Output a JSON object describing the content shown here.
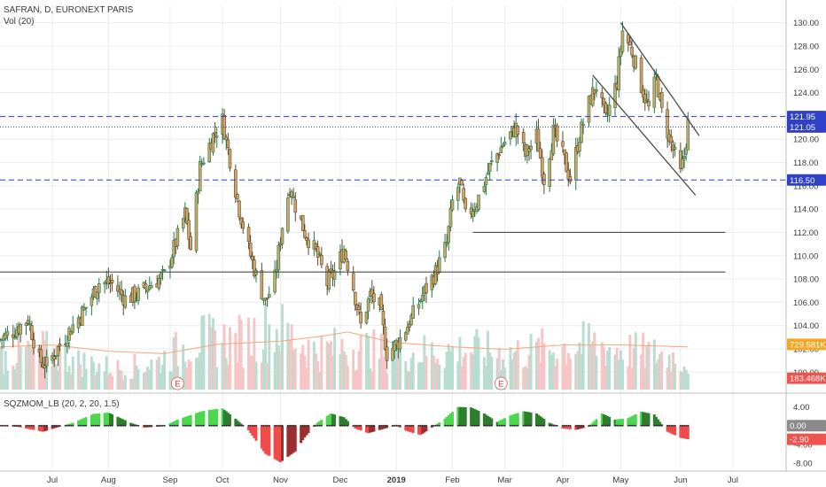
{
  "chart_data": {
    "type": "candlestick",
    "symbol_line": "SAFRAN, D, EURONEXT PARIS",
    "volume_label": "Vol (20)",
    "indicator_label": "SQZMOM_LB (20, 2, 20, 1.5)",
    "price_axis": {
      "range": [
        98.5,
        131.5
      ],
      "ticks": [
        100,
        102,
        104,
        106,
        108,
        110,
        112,
        114,
        116,
        118,
        120,
        122,
        124,
        126,
        128,
        130
      ],
      "tick_labels": [
        "100.00",
        "102.00",
        "104.00",
        "106.00",
        "108.00",
        "110.00",
        "112.00",
        "114.00",
        "116.00",
        "118.00",
        "120.00",
        "122.00",
        "124.00",
        "126.00",
        "128.00",
        "130.00"
      ]
    },
    "indicator_axis": {
      "range": [
        -9.5,
        6
      ],
      "ticks": [
        4,
        0,
        -4,
        -8
      ],
      "tick_labels": [
        "4.00",
        "0.00",
        "-4.00",
        "-8.00"
      ]
    },
    "x_axis": {
      "start": "2018-06-04",
      "end": "2019-07-29",
      "labels": [
        {
          "text": "Jul",
          "date": "2018-07-02"
        },
        {
          "text": "Aug",
          "date": "2018-08-01"
        },
        {
          "text": "Sep",
          "date": "2018-09-03"
        },
        {
          "text": "Oct",
          "date": "2018-10-01"
        },
        {
          "text": "Nov",
          "date": "2018-11-01"
        },
        {
          "text": "Dec",
          "date": "2018-12-03"
        },
        {
          "text": "2019",
          "date": "2019-01-02"
        },
        {
          "text": "Feb",
          "date": "2019-02-01"
        },
        {
          "text": "Mar",
          "date": "2019-03-01"
        },
        {
          "text": "Apr",
          "date": "2019-04-01"
        },
        {
          "text": "May",
          "date": "2019-05-02"
        },
        {
          "text": "Jun",
          "date": "2019-06-03"
        },
        {
          "text": "Jul",
          "date": "2019-07-01"
        }
      ]
    },
    "price_path": [
      [
        "2018-06-04",
        102.8
      ],
      [
        "2018-06-12",
        103.6
      ],
      [
        "2018-06-19",
        104.6
      ],
      [
        "2018-06-25",
        101.0
      ],
      [
        "2018-06-29",
        100.6
      ],
      [
        "2018-07-06",
        102.3
      ],
      [
        "2018-07-13",
        104.0
      ],
      [
        "2018-07-20",
        105.6
      ],
      [
        "2018-07-27",
        107.7
      ],
      [
        "2018-08-03",
        107.6
      ],
      [
        "2018-08-10",
        106.3
      ],
      [
        "2018-08-17",
        106.7
      ],
      [
        "2018-08-24",
        107.6
      ],
      [
        "2018-08-31",
        108.3
      ],
      [
        "2018-09-07",
        111.6
      ],
      [
        "2018-09-11",
        113.6
      ],
      [
        "2018-09-14",
        110.6
      ],
      [
        "2018-09-19",
        117.6
      ],
      [
        "2018-09-26",
        120.3
      ],
      [
        "2018-10-01",
        121.6
      ],
      [
        "2018-10-05",
        118.3
      ],
      [
        "2018-10-10",
        114.0
      ],
      [
        "2018-10-15",
        110.6
      ],
      [
        "2018-10-19",
        108.3
      ],
      [
        "2018-10-24",
        106.0
      ],
      [
        "2018-10-29",
        108.0
      ],
      [
        "2018-11-02",
        112.6
      ],
      [
        "2018-11-06",
        116.0
      ],
      [
        "2018-11-09",
        114.3
      ],
      [
        "2018-11-14",
        112.0
      ],
      [
        "2018-11-20",
        110.3
      ],
      [
        "2018-11-26",
        107.6
      ],
      [
        "2018-11-30",
        108.6
      ],
      [
        "2018-12-05",
        110.6
      ],
      [
        "2018-12-10",
        107.3
      ],
      [
        "2018-12-14",
        104.0
      ],
      [
        "2018-12-19",
        106.6
      ],
      [
        "2018-12-24",
        105.6
      ],
      [
        "2018-12-28",
        101.6
      ],
      [
        "2019-01-03",
        102.6
      ],
      [
        "2019-01-09",
        104.3
      ],
      [
        "2019-01-16",
        106.6
      ],
      [
        "2019-01-23",
        108.6
      ],
      [
        "2019-01-29",
        111.0
      ],
      [
        "2019-02-01",
        114.6
      ],
      [
        "2019-02-05",
        116.3
      ],
      [
        "2019-02-08",
        113.3
      ],
      [
        "2019-02-14",
        114.6
      ],
      [
        "2019-02-21",
        117.6
      ],
      [
        "2019-02-28",
        119.6
      ],
      [
        "2019-03-07",
        121.0
      ],
      [
        "2019-03-12",
        118.6
      ],
      [
        "2019-03-18",
        120.3
      ],
      [
        "2019-03-22",
        116.6
      ],
      [
        "2019-03-27",
        120.6
      ],
      [
        "2019-04-01",
        118.6
      ],
      [
        "2019-04-05",
        116.6
      ],
      [
        "2019-04-10",
        120.3
      ],
      [
        "2019-04-16",
        123.6
      ],
      [
        "2019-04-19",
        124.6
      ],
      [
        "2019-04-24",
        121.6
      ],
      [
        "2019-04-30",
        125.0
      ],
      [
        "2019-05-03",
        129.3
      ],
      [
        "2019-05-08",
        127.6
      ],
      [
        "2019-05-13",
        124.6
      ],
      [
        "2019-05-17",
        122.6
      ],
      [
        "2019-05-21",
        125.3
      ],
      [
        "2019-05-24",
        122.3
      ],
      [
        "2019-05-29",
        119.6
      ],
      [
        "2019-06-03",
        117.0
      ],
      [
        "2019-06-05",
        118.6
      ],
      [
        "2019-06-07",
        121.3
      ]
    ],
    "volume_axis": {
      "max": 1500
    },
    "volume_path": [
      [
        "2018-06-04",
        650
      ],
      [
        "2018-06-25",
        820
      ],
      [
        "2018-07-16",
        560
      ],
      [
        "2018-08-06",
        420
      ],
      [
        "2018-08-27",
        540
      ],
      [
        "2018-09-17",
        1000
      ],
      [
        "2018-10-08",
        960
      ],
      [
        "2018-10-29",
        1250
      ],
      [
        "2018-11-19",
        780
      ],
      [
        "2018-12-10",
        860
      ],
      [
        "2018-12-31",
        720
      ],
      [
        "2019-01-21",
        760
      ],
      [
        "2019-02-11",
        800
      ],
      [
        "2019-03-04",
        720
      ],
      [
        "2019-03-25",
        820
      ],
      [
        "2019-04-15",
        900
      ],
      [
        "2019-05-06",
        780
      ],
      [
        "2019-05-27",
        680
      ],
      [
        "2019-06-07",
        560
      ]
    ],
    "volume_ma_path": [
      [
        "2018-06-04",
        690
      ],
      [
        "2018-07-02",
        720
      ],
      [
        "2018-08-01",
        620
      ],
      [
        "2018-08-31",
        580
      ],
      [
        "2018-09-28",
        730
      ],
      [
        "2018-10-31",
        780
      ],
      [
        "2018-11-23",
        860
      ],
      [
        "2018-12-07",
        930
      ],
      [
        "2018-12-31",
        760
      ],
      [
        "2019-02-01",
        690
      ],
      [
        "2019-03-01",
        650
      ],
      [
        "2019-04-01",
        720
      ],
      [
        "2019-05-02",
        720
      ],
      [
        "2019-06-07",
        690
      ]
    ],
    "volume_tags": [
      {
        "label": "729.581K",
        "value": 729.581,
        "color": "#f5a623",
        "text_color": "#3a3a3a"
      },
      {
        "label": "183.468K",
        "value": 183.468,
        "color": "#ef5350",
        "text_color": "#ffffff"
      }
    ],
    "earnings_markers": [
      {
        "label": "E",
        "date": "2018-09-07"
      },
      {
        "label": "E",
        "date": "2019-02-27"
      }
    ],
    "horizontal_levels": [
      {
        "value": 121.95,
        "label": "121.95",
        "style": "dashed",
        "color": "#3040c8"
      },
      {
        "value": 121.05,
        "label": "121.05",
        "style": "dotted",
        "color": "#3040c8"
      },
      {
        "value": 116.5,
        "label": "116.50",
        "style": "dashed",
        "color": "#3040c8"
      }
    ],
    "support_lines": [
      {
        "value": 108.6,
        "from": "2018-06-04",
        "to": "2019-06-27"
      },
      {
        "value": 112.0,
        "from": "2019-02-12",
        "to": "2019-06-27"
      }
    ],
    "trend_lines": [
      {
        "from": [
          "2019-05-02",
          130.0
        ],
        "to": [
          "2019-06-13",
          120.3
        ]
      },
      {
        "from": [
          "2019-04-17",
          125.5
        ],
        "to": [
          "2019-06-11",
          115.2
        ]
      }
    ],
    "squeeze_momentum_path": [
      [
        "2018-06-04",
        0.0
      ],
      [
        "2018-06-14",
        -0.3
      ],
      [
        "2018-06-27",
        -1.3
      ],
      [
        "2018-07-06",
        -0.2
      ],
      [
        "2018-07-13",
        0.6
      ],
      [
        "2018-07-24",
        2.5
      ],
      [
        "2018-08-01",
        2.8
      ],
      [
        "2018-08-13",
        0.6
      ],
      [
        "2018-08-20",
        -0.4
      ],
      [
        "2018-08-31",
        -0.1
      ],
      [
        "2018-09-07",
        1.3
      ],
      [
        "2018-09-21",
        3.2
      ],
      [
        "2018-10-01",
        3.7
      ],
      [
        "2018-10-08",
        1.5
      ],
      [
        "2018-10-15",
        -1.0
      ],
      [
        "2018-10-24",
        -6.0
      ],
      [
        "2018-11-01",
        -7.8
      ],
      [
        "2018-11-09",
        -5.5
      ],
      [
        "2018-11-14",
        -2.5
      ],
      [
        "2018-11-21",
        0.7
      ],
      [
        "2018-11-28",
        2.6
      ],
      [
        "2018-12-05",
        1.8
      ],
      [
        "2018-12-11",
        -0.6
      ],
      [
        "2018-12-18",
        -1.6
      ],
      [
        "2018-12-27",
        -0.6
      ],
      [
        "2019-01-02",
        0.0
      ],
      [
        "2019-01-08",
        -1.2
      ],
      [
        "2019-01-15",
        -2.0
      ],
      [
        "2019-01-21",
        -0.4
      ],
      [
        "2019-01-28",
        1.5
      ],
      [
        "2019-02-04",
        4.0
      ],
      [
        "2019-02-11",
        3.9
      ],
      [
        "2019-02-18",
        2.6
      ],
      [
        "2019-02-25",
        0.8
      ],
      [
        "2019-03-04",
        2.2
      ],
      [
        "2019-03-11",
        3.1
      ],
      [
        "2019-03-18",
        2.6
      ],
      [
        "2019-03-25",
        0.6
      ],
      [
        "2019-04-01",
        -0.6
      ],
      [
        "2019-04-08",
        -0.9
      ],
      [
        "2019-04-15",
        -0.2
      ],
      [
        "2019-04-22",
        2.6
      ],
      [
        "2019-04-29",
        1.3
      ],
      [
        "2019-05-06",
        1.6
      ],
      [
        "2019-05-13",
        3.0
      ],
      [
        "2019-05-20",
        2.4
      ],
      [
        "2019-05-27",
        -1.3
      ],
      [
        "2019-06-03",
        -2.6
      ],
      [
        "2019-06-07",
        -2.9
      ]
    ],
    "squeeze_tags": [
      {
        "label": "0.00",
        "value": 0.0,
        "color": "#8a8a8a"
      },
      {
        "label": "-2.90",
        "value": -2.9,
        "color": "#ef5350"
      }
    ],
    "colors": {
      "candle_up": "#1f7a4a",
      "candle_down": "#5a4a2a",
      "candle_body": "#d2a56a",
      "volume_up": "#b9ddd0",
      "volume_down": "#f6c5c5",
      "volume_ma": "#f2a67a",
      "mom_pos_strong": "#4cd84c",
      "mom_pos_weak": "#2d7e2d",
      "mom_neg_strong": "#ef4b4b",
      "mom_neg_weak": "#9a2f2f",
      "zero_squeeze": "#2b2b2b",
      "grid": "#ececec",
      "axis_line": "#bdbdbd",
      "level": "#3040c8",
      "support": "#4a4a4a"
    },
    "grid": true,
    "legend_position": "top-left"
  }
}
